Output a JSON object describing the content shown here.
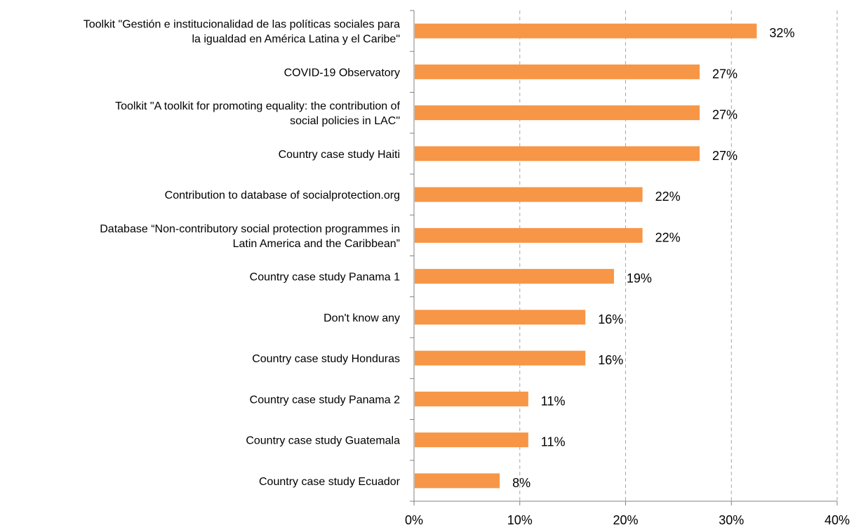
{
  "chart_data": {
    "type": "bar",
    "orientation": "horizontal",
    "categories": [
      [
        "Toolkit \"Gestión e institucionalidad de las políticas sociales para",
        "la igualdad en América Latina y el Caribe\""
      ],
      [
        "COVID-19 Observatory"
      ],
      [
        "Toolkit \"A toolkit for promoting equality: the contribution of",
        "social policies in LAC\""
      ],
      [
        "Country case study Haiti"
      ],
      [
        "Contribution to database of socialprotection.org"
      ],
      [
        "Database “Non-contributory social protection programmes in",
        "Latin America and the Caribbean”"
      ],
      [
        "Country case study Panama 1"
      ],
      [
        "Don't know any"
      ],
      [
        "Country case study Honduras"
      ],
      [
        "Country case study Panama 2"
      ],
      [
        "Country case study Guatemala"
      ],
      [
        "Country case study Ecuador"
      ]
    ],
    "values": [
      32.4,
      27.0,
      27.0,
      27.0,
      21.6,
      21.6,
      18.9,
      16.2,
      16.2,
      10.8,
      10.8,
      8.1
    ],
    "data_labels": [
      "32%",
      "27%",
      "27%",
      "27%",
      "22%",
      "22%",
      "19%",
      "16%",
      "16%",
      "11%",
      "11%",
      "8%"
    ],
    "xlim": [
      0,
      40
    ],
    "ticks": [
      0,
      10,
      20,
      30,
      40
    ],
    "tick_labels": [
      "0%",
      "10%",
      "20%",
      "30%",
      "40%"
    ],
    "grid": "vertical dashed",
    "bar_color": "#F79646",
    "grid_color": "#A6A6A6",
    "axis_color": "#808080"
  }
}
